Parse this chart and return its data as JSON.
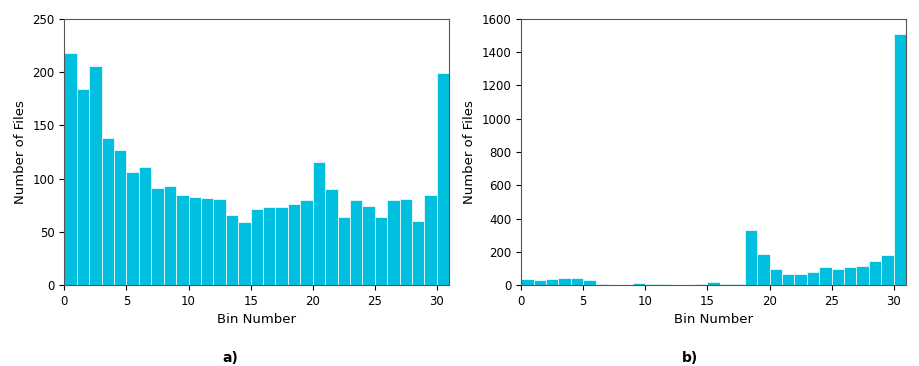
{
  "chart_a": {
    "values": [
      218,
      184,
      206,
      138,
      127,
      106,
      111,
      91,
      93,
      85,
      83,
      82,
      81,
      66,
      59,
      72,
      73,
      73,
      76,
      80,
      116,
      90,
      64,
      80,
      74,
      64,
      80,
      81,
      60,
      85,
      199
    ],
    "xlabel": "Bin Number",
    "ylabel": "Number of Files",
    "ylim": [
      0,
      250
    ],
    "yticks": [
      0,
      50,
      100,
      150,
      200,
      250
    ],
    "xticks": [
      0,
      5,
      10,
      15,
      20,
      25,
      30
    ],
    "label": "a)",
    "bar_color": "#00BFDF"
  },
  "chart_b": {
    "values": [
      35,
      33,
      35,
      42,
      43,
      32,
      5,
      4,
      3,
      12,
      10,
      5,
      3,
      3,
      5,
      20,
      5,
      5,
      330,
      188,
      100,
      65,
      70,
      80,
      110,
      100,
      110,
      115,
      145,
      180,
      1510
    ],
    "xlabel": "Bin Number",
    "ylabel": "Number of Files",
    "ylim": [
      0,
      1600
    ],
    "yticks": [
      0,
      200,
      400,
      600,
      800,
      1000,
      1200,
      1400,
      1600
    ],
    "xticks": [
      0,
      5,
      10,
      15,
      20,
      25,
      30
    ],
    "label": "b)",
    "bar_color": "#00BFDF"
  },
  "background_color": "#ffffff",
  "tick_fontsize": 8.5,
  "label_fontsize": 9.5,
  "sublabel_fontsize": 10
}
